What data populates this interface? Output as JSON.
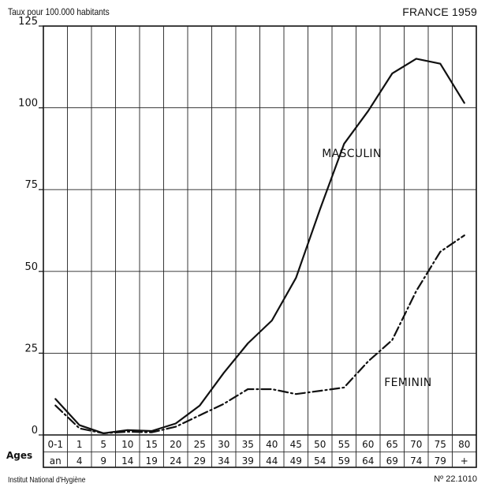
{
  "header": {
    "ylabel": "Taux pour 100.000 habitants",
    "title": "FRANCE 1959"
  },
  "footer": {
    "source": "Institut National d'Hygiène",
    "reference": "Nº 22.1010"
  },
  "chart_data": {
    "type": "line",
    "title": "FRANCE 1959",
    "ylabel": "Taux pour 100.000 habitants",
    "xlabel": "Ages",
    "ylim": [
      0,
      125
    ],
    "yticks": [
      0,
      25,
      50,
      75,
      100,
      125
    ],
    "grid": true,
    "categories": [
      [
        "0-1",
        "an"
      ],
      [
        "1",
        "4"
      ],
      [
        "5",
        "9"
      ],
      [
        "10",
        "14"
      ],
      [
        "15",
        "19"
      ],
      [
        "20",
        "24"
      ],
      [
        "25",
        "29"
      ],
      [
        "30",
        "34"
      ],
      [
        "35",
        "39"
      ],
      [
        "40",
        "44"
      ],
      [
        "45",
        "49"
      ],
      [
        "50",
        "54"
      ],
      [
        "55",
        "59"
      ],
      [
        "60",
        "64"
      ],
      [
        "65",
        "69"
      ],
      [
        "70",
        "74"
      ],
      [
        "75",
        "79"
      ],
      [
        "80",
        "+"
      ]
    ],
    "series": [
      {
        "name": "MASCULIN",
        "style": "solid",
        "values": [
          11,
          3,
          0.5,
          1.5,
          1.2,
          3.5,
          9,
          19,
          28,
          35,
          48,
          69,
          89,
          99,
          110.5,
          115,
          113.5,
          101.5
        ]
      },
      {
        "name": "FEMININ",
        "style": "dash-dot",
        "values": [
          9,
          2,
          0.5,
          1,
          0.8,
          2.5,
          6,
          9.5,
          14,
          14,
          12.5,
          13.5,
          14.5,
          22.5,
          29,
          44,
          56,
          61
        ]
      }
    ]
  }
}
